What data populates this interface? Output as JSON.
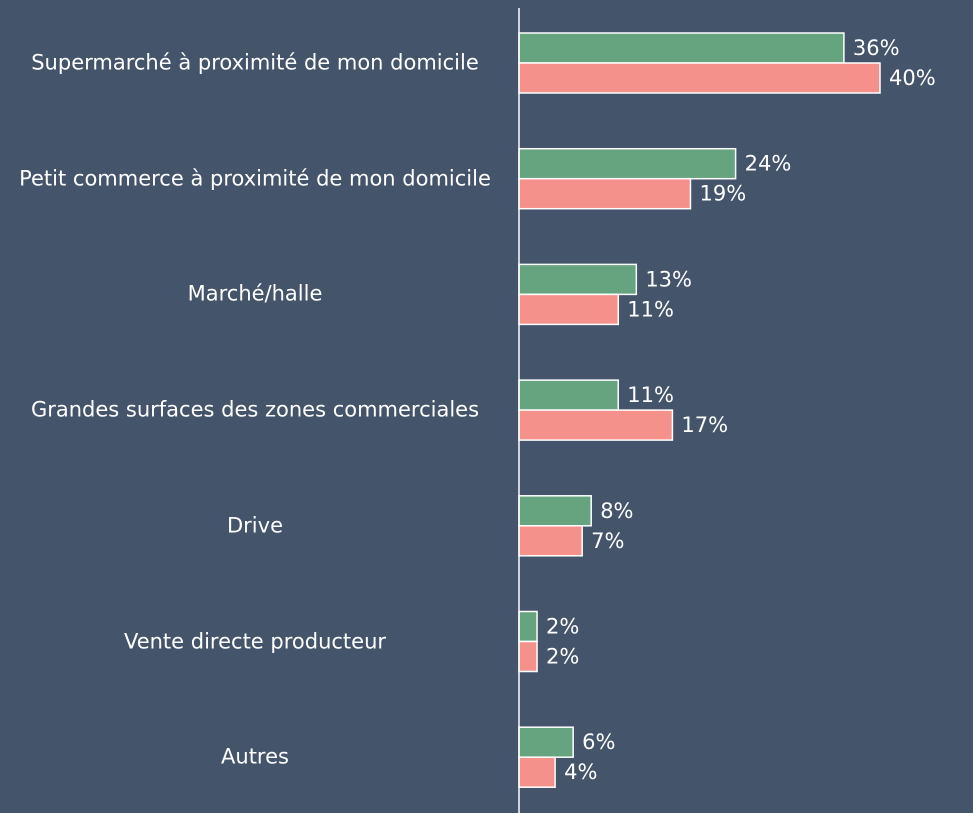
{
  "chart_data": {
    "type": "hbar",
    "categories": [
      "Supermarché à proximité de mon domicile",
      "Petit commerce à proximité de mon domicile",
      "Marché/halle",
      "Grandes surfaces des zones commerciales",
      "Drive",
      "Vente directe producteur",
      "Autres"
    ],
    "series": [
      {
        "color": "#66a47f",
        "values": [
          36,
          24,
          13,
          11,
          8,
          2,
          6
        ],
        "value_labels": [
          "36%",
          "24%",
          "13%",
          "11%",
          "8%",
          "2%",
          "6%"
        ]
      },
      {
        "color": "#f4918b",
        "values": [
          40,
          19,
          11,
          17,
          7,
          2,
          4
        ],
        "value_labels": [
          "40%",
          "19%",
          "11%",
          "17%",
          "7%",
          "2%",
          "4%"
        ]
      }
    ],
    "xlim": [
      0,
      40
    ]
  }
}
